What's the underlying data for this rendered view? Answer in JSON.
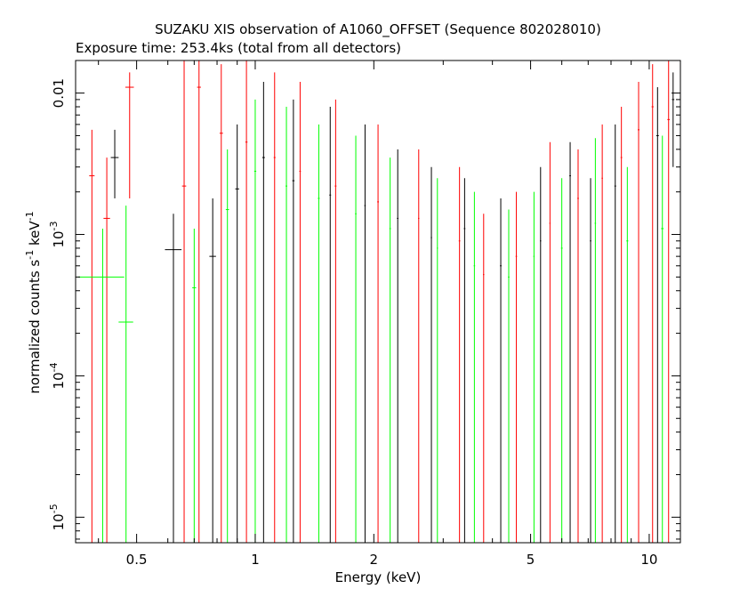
{
  "chart_data": {
    "type": "scatter",
    "title": "SUZAKU XIS observation of A1060_OFFSET (Sequence 802028010)",
    "subtitle": "Exposure time: 253.4ks (total from all detectors)",
    "xlabel": "Energy (keV)",
    "ylabel_main": "normalized counts s",
    "ylabel_mid": " keV",
    "ylabel_sup": "-1",
    "x_scale": "log",
    "y_scale": "log",
    "xlim": [
      0.35,
      12.0
    ],
    "ylim": [
      6.6e-06,
      0.017
    ],
    "grid": false,
    "legend": "none",
    "x_ticks": [
      {
        "value": 0.5,
        "label": "0.5"
      },
      {
        "value": 1,
        "label": "1"
      },
      {
        "value": 2,
        "label": "2"
      },
      {
        "value": 5,
        "label": "5"
      },
      {
        "value": 10,
        "label": "10"
      }
    ],
    "y_ticks": [
      {
        "value": 1e-05,
        "base": "10",
        "exp": "-5",
        "label": ""
      },
      {
        "value": 0.0001,
        "base": "10",
        "exp": "-4",
        "label": ""
      },
      {
        "value": 0.001,
        "base": "10",
        "exp": "-3",
        "label": ""
      },
      {
        "value": 0.01,
        "base": "",
        "exp": "",
        "label": "0.01"
      }
    ],
    "series": [
      {
        "color": "#000000",
        "points": [
          {
            "x": 0.44,
            "y": 0.0035,
            "xerr": 0.01,
            "ylo": 0.0018,
            "yhi": 0.0055
          },
          {
            "x": 0.62,
            "y": 0.00078,
            "xerr": 0.03,
            "ylo": 0.0,
            "yhi": 0.0014
          },
          {
            "x": 0.78,
            "y": 0.0007,
            "xerr": 0.015,
            "ylo": 0.0,
            "yhi": 0.0018
          },
          {
            "x": 0.9,
            "y": 0.0021,
            "xerr": 0.01,
            "ylo": 0.0,
            "yhi": 0.006
          },
          {
            "x": 1.05,
            "y": 0.0035,
            "xerr": 0.008,
            "ylo": 0.0,
            "yhi": 0.012
          },
          {
            "x": 1.25,
            "y": 0.0024,
            "xerr": 0.008,
            "ylo": 0.0,
            "yhi": 0.009
          },
          {
            "x": 1.55,
            "y": 0.0019,
            "xerr": 0.008,
            "ylo": 0.0,
            "yhi": 0.008
          },
          {
            "x": 1.9,
            "y": 0.0016,
            "xerr": 0.008,
            "ylo": 0.0,
            "yhi": 0.006
          },
          {
            "x": 2.3,
            "y": 0.0013,
            "xerr": 0.01,
            "ylo": 0.0,
            "yhi": 0.004
          },
          {
            "x": 2.8,
            "y": 0.00095,
            "xerr": 0.01,
            "ylo": 0.0,
            "yhi": 0.003
          },
          {
            "x": 3.4,
            "y": 0.0011,
            "xerr": 0.015,
            "ylo": 0.0,
            "yhi": 0.0025
          },
          {
            "x": 4.2,
            "y": 0.0006,
            "xerr": 0.02,
            "ylo": 0.0,
            "yhi": 0.0018
          },
          {
            "x": 5.3,
            "y": 0.0009,
            "xerr": 0.02,
            "ylo": 0.0,
            "yhi": 0.003
          },
          {
            "x": 6.3,
            "y": 0.0026,
            "xerr": 0.03,
            "ylo": 0.0,
            "yhi": 0.0045
          },
          {
            "x": 7.1,
            "y": 0.0009,
            "xerr": 0.03,
            "ylo": 0.0,
            "yhi": 0.0025
          },
          {
            "x": 8.2,
            "y": 0.0022,
            "xerr": 0.04,
            "ylo": 0.0,
            "yhi": 0.006
          },
          {
            "x": 10.5,
            "y": 0.005,
            "xerr": 0.08,
            "ylo": 0.0,
            "yhi": 0.011
          },
          {
            "x": 11.5,
            "y": 0.009,
            "xerr": 0.08,
            "ylo": 0.003,
            "yhi": 0.014
          }
        ]
      },
      {
        "color": "#ff0000",
        "points": [
          {
            "x": 0.385,
            "y": 0.0026,
            "xerr": 0.006,
            "ylo": 0.0,
            "yhi": 0.0055
          },
          {
            "x": 0.42,
            "y": 0.0013,
            "xerr": 0.008,
            "ylo": 0.0,
            "yhi": 0.0035
          },
          {
            "x": 0.48,
            "y": 0.011,
            "xerr": 0.012,
            "ylo": 0.0018,
            "yhi": 0.014
          },
          {
            "x": 0.66,
            "y": 0.0022,
            "xerr": 0.008,
            "ylo": 0.0,
            "yhi": 0.017
          },
          {
            "x": 0.72,
            "y": 0.011,
            "xerr": 0.008,
            "ylo": 0.0,
            "yhi": 0.017
          },
          {
            "x": 0.82,
            "y": 0.0052,
            "xerr": 0.008,
            "ylo": 0.0,
            "yhi": 0.016
          },
          {
            "x": 0.95,
            "y": 0.0045,
            "xerr": 0.006,
            "ylo": 0.0,
            "yhi": 0.017
          },
          {
            "x": 1.12,
            "y": 0.0035,
            "xerr": 0.006,
            "ylo": 0.0,
            "yhi": 0.014
          },
          {
            "x": 1.3,
            "y": 0.0028,
            "xerr": 0.006,
            "ylo": 0.0,
            "yhi": 0.012
          },
          {
            "x": 1.6,
            "y": 0.0022,
            "xerr": 0.008,
            "ylo": 0.0,
            "yhi": 0.009
          },
          {
            "x": 2.05,
            "y": 0.0017,
            "xerr": 0.01,
            "ylo": 0.0,
            "yhi": 0.006
          },
          {
            "x": 2.6,
            "y": 0.0013,
            "xerr": 0.01,
            "ylo": 0.0,
            "yhi": 0.004
          },
          {
            "x": 3.3,
            "y": 0.0009,
            "xerr": 0.015,
            "ylo": 0.0,
            "yhi": 0.003
          },
          {
            "x": 3.8,
            "y": 0.00052,
            "xerr": 0.015,
            "ylo": 0.0,
            "yhi": 0.0014
          },
          {
            "x": 4.6,
            "y": 0.0007,
            "xerr": 0.02,
            "ylo": 0.0,
            "yhi": 0.002
          },
          {
            "x": 5.6,
            "y": 0.0012,
            "xerr": 0.02,
            "ylo": 0.0,
            "yhi": 0.0045
          },
          {
            "x": 6.6,
            "y": 0.0018,
            "xerr": 0.03,
            "ylo": 0.0,
            "yhi": 0.004
          },
          {
            "x": 7.6,
            "y": 0.0025,
            "xerr": 0.03,
            "ylo": 0.0,
            "yhi": 0.006
          },
          {
            "x": 8.5,
            "y": 0.0035,
            "xerr": 0.04,
            "ylo": 0.0,
            "yhi": 0.008
          },
          {
            "x": 9.4,
            "y": 0.0055,
            "xerr": 0.05,
            "ylo": 0.0,
            "yhi": 0.012
          },
          {
            "x": 10.2,
            "y": 0.008,
            "xerr": 0.06,
            "ylo": 0.0,
            "yhi": 0.016
          },
          {
            "x": 11.2,
            "y": 0.0065,
            "xerr": 0.08,
            "ylo": 0.0,
            "yhi": 0.017
          }
        ]
      },
      {
        "color": "#00ff00",
        "points": [
          {
            "x": 0.41,
            "y": 0.0005,
            "xerr": 0.055,
            "ylo": 0.0,
            "yhi": 0.0011
          },
          {
            "x": 0.47,
            "y": 0.00024,
            "xerr": 0.02,
            "ylo": 0.0,
            "yhi": 0.0016
          },
          {
            "x": 0.7,
            "y": 0.00042,
            "xerr": 0.008,
            "ylo": 0.0,
            "yhi": 0.0011
          },
          {
            "x": 0.85,
            "y": 0.0015,
            "xerr": 0.008,
            "ylo": 0.0,
            "yhi": 0.004
          },
          {
            "x": 1.0,
            "y": 0.0028,
            "xerr": 0.006,
            "ylo": 0.0,
            "yhi": 0.009
          },
          {
            "x": 1.2,
            "y": 0.0022,
            "xerr": 0.006,
            "ylo": 0.0,
            "yhi": 0.008
          },
          {
            "x": 1.45,
            "y": 0.0018,
            "xerr": 0.008,
            "ylo": 0.0,
            "yhi": 0.006
          },
          {
            "x": 1.8,
            "y": 0.0014,
            "xerr": 0.008,
            "ylo": 0.0,
            "yhi": 0.005
          },
          {
            "x": 2.2,
            "y": 0.0011,
            "xerr": 0.01,
            "ylo": 0.0,
            "yhi": 0.0035
          },
          {
            "x": 2.9,
            "y": 0.0008,
            "xerr": 0.01,
            "ylo": 0.0,
            "yhi": 0.0025
          },
          {
            "x": 3.6,
            "y": 0.0006,
            "xerr": 0.015,
            "ylo": 0.0,
            "yhi": 0.002
          },
          {
            "x": 4.4,
            "y": 0.0005,
            "xerr": 0.02,
            "ylo": 0.0,
            "yhi": 0.0015
          },
          {
            "x": 5.1,
            "y": 0.0007,
            "xerr": 0.02,
            "ylo": 0.0,
            "yhi": 0.002
          },
          {
            "x": 6.0,
            "y": 0.0008,
            "xerr": 0.03,
            "ylo": 0.0,
            "yhi": 0.0025
          },
          {
            "x": 7.3,
            "y": 0.0012,
            "xerr": 0.03,
            "ylo": 0.0,
            "yhi": 0.0048
          },
          {
            "x": 8.8,
            "y": 0.0009,
            "xerr": 0.05,
            "ylo": 0.0,
            "yhi": 0.003
          },
          {
            "x": 10.8,
            "y": 0.0011,
            "xerr": 0.08,
            "ylo": 0.0,
            "yhi": 0.005
          }
        ]
      }
    ]
  }
}
